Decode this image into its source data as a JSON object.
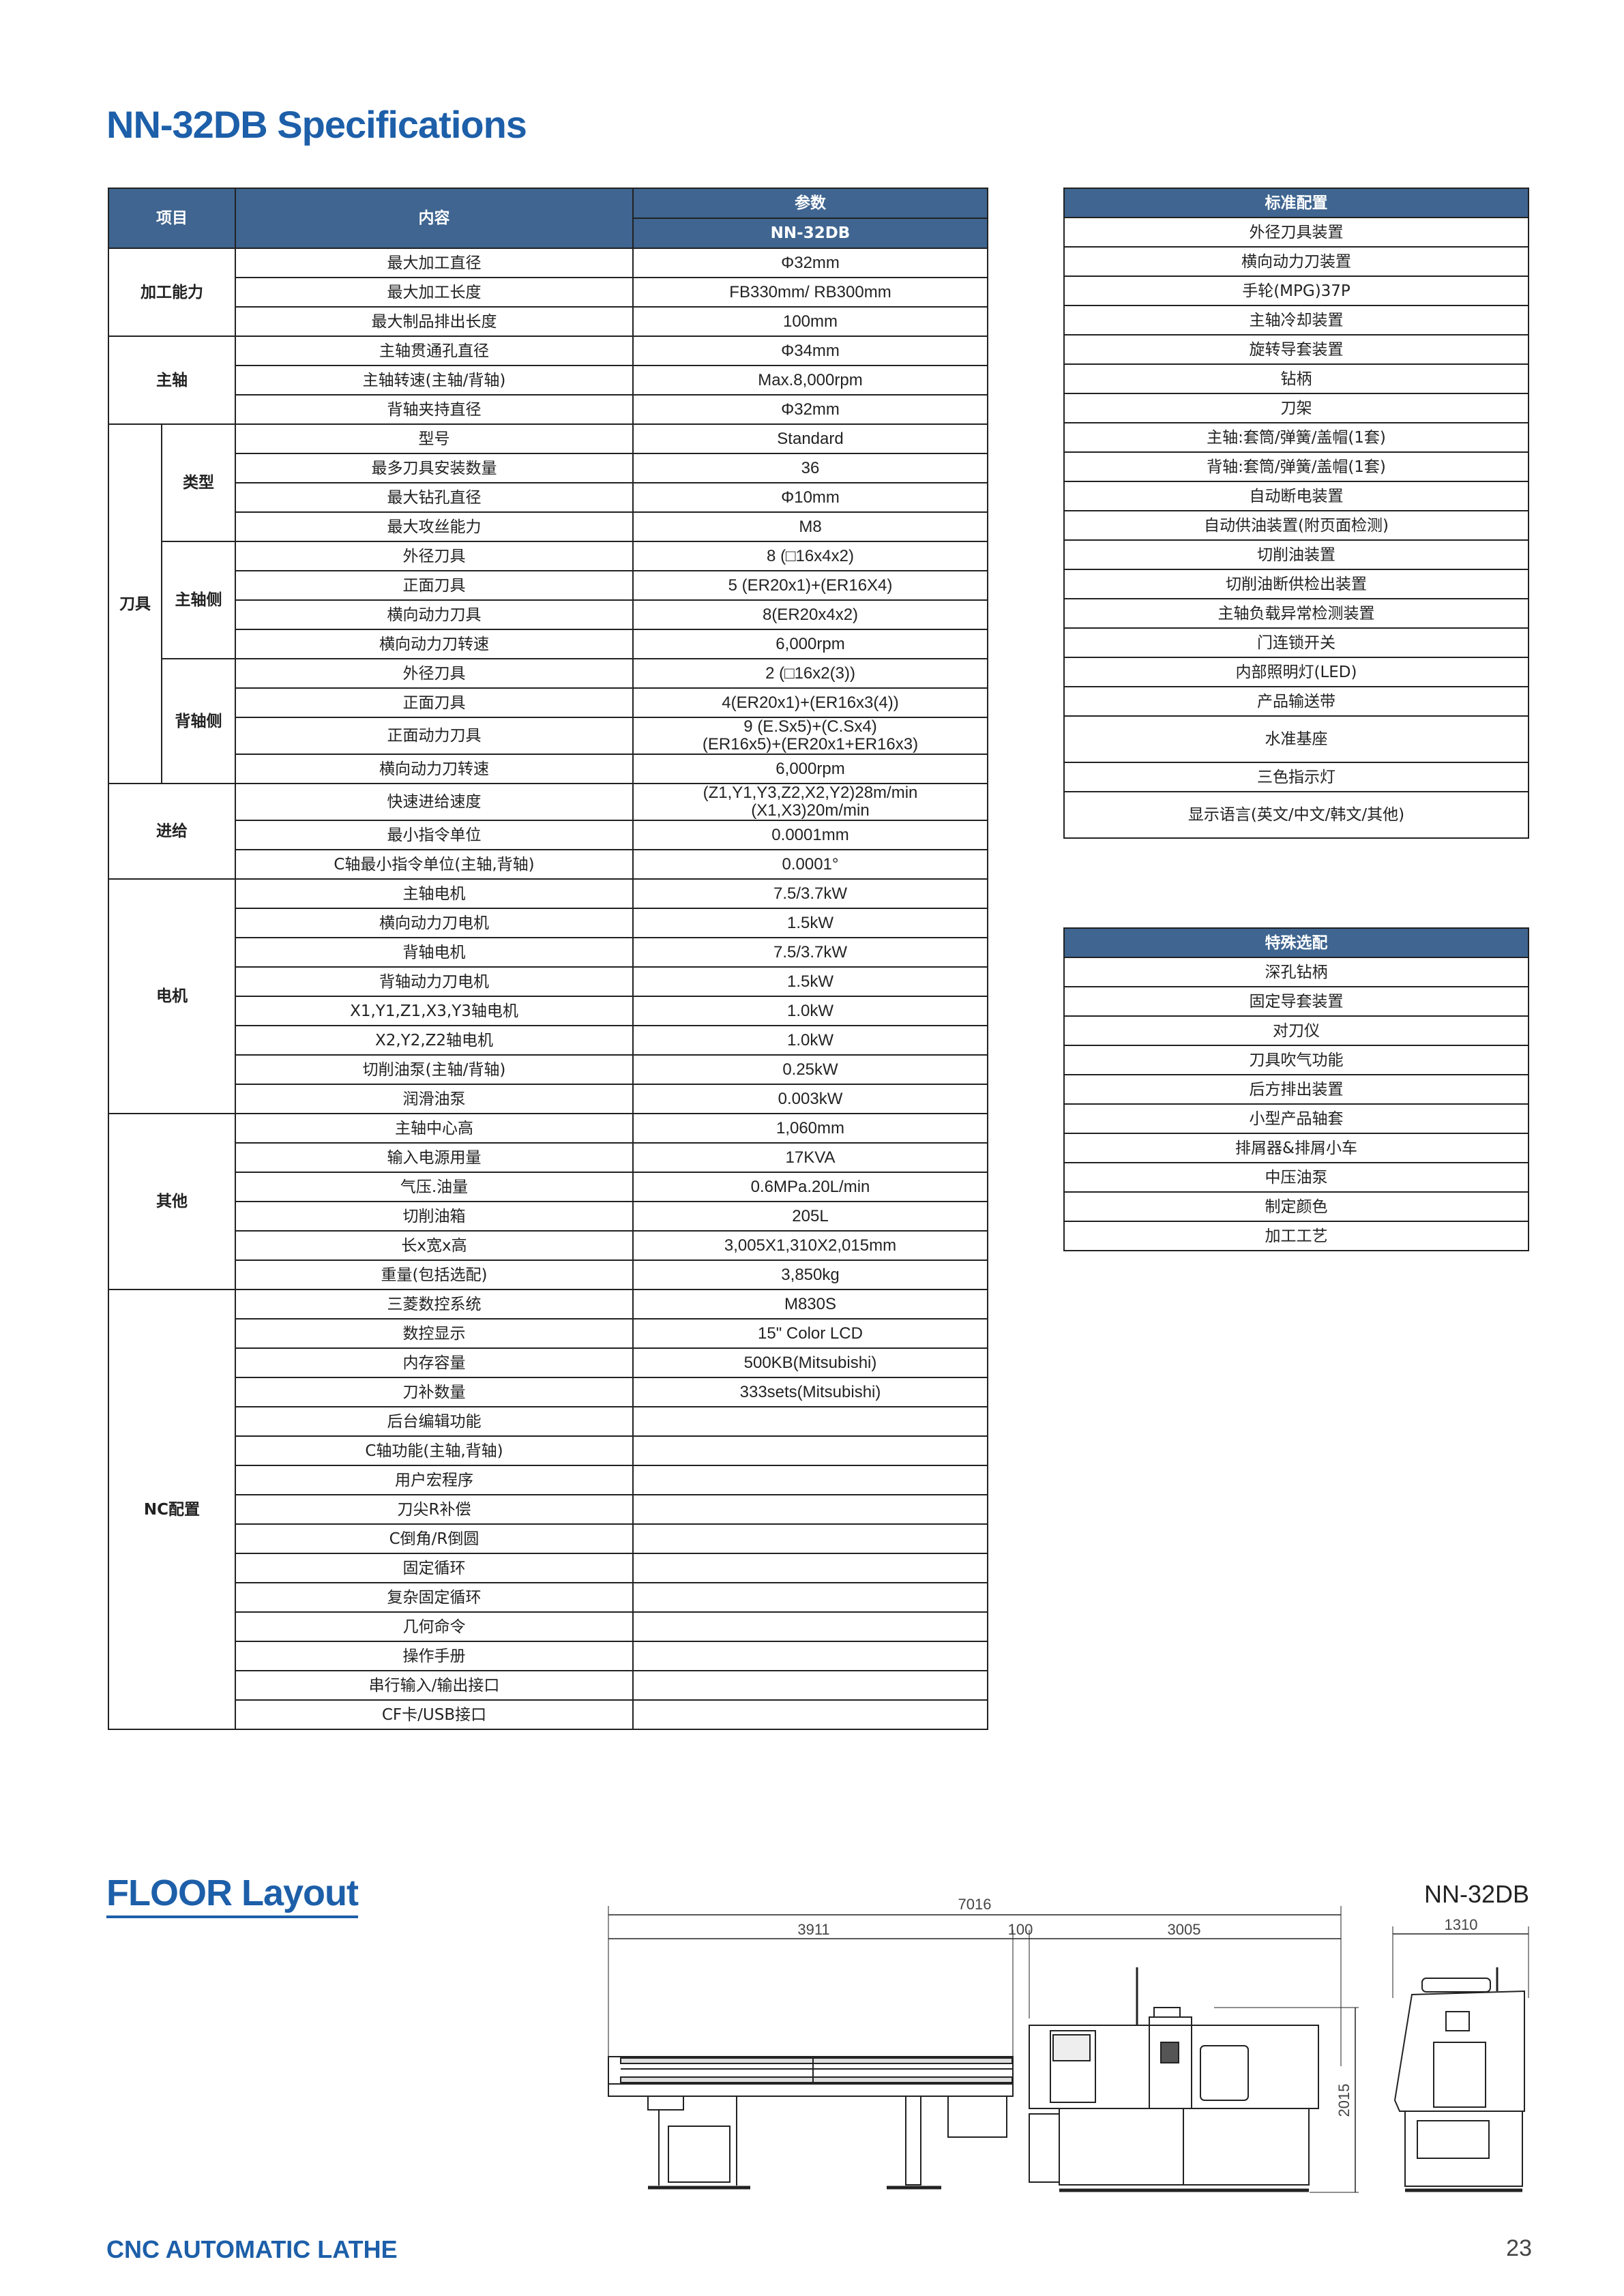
{
  "page_title": "NN-32DB Specifications",
  "accent_color": "#1d5fa9",
  "header_color": "#3f6590",
  "spec_table": {
    "headers": {
      "item": "项目",
      "content": "内容",
      "params": "参数",
      "model": "NN-32DB"
    },
    "groups": [
      {
        "label": "加工能力",
        "rows": [
          {
            "name": "最大加工直径",
            "value": "Φ32mm"
          },
          {
            "name": "最大加工长度",
            "value": "FB330mm/ RB300mm"
          },
          {
            "name": "最大制品排出长度",
            "value": "100mm"
          }
        ]
      },
      {
        "label": "主轴",
        "rows": [
          {
            "name": "主轴贯通孔直径",
            "value": "Φ34mm"
          },
          {
            "name": "主轴转速(主轴/背轴)",
            "value": "Max.8,000rpm"
          },
          {
            "name": "背轴夹持直径",
            "value": "Φ32mm"
          }
        ]
      },
      {
        "label": "刀具",
        "subgroups": [
          {
            "label": "类型",
            "rows": [
              {
                "name": "型号",
                "value": "Standard"
              },
              {
                "name": "最多刀具安装数量",
                "value": "36"
              },
              {
                "name": "最大钻孔直径",
                "value": "Φ10mm"
              },
              {
                "name": "最大攻丝能力",
                "value": "M8"
              }
            ]
          },
          {
            "label": "主轴侧",
            "rows": [
              {
                "name": "外径刀具",
                "value": "8 (□16x4x2)"
              },
              {
                "name": "正面刀具",
                "value": "5 (ER20x1)+(ER16X4)"
              },
              {
                "name": "横向动力刀具",
                "value": "8(ER20x4x2)"
              },
              {
                "name": "横向动力刀转速",
                "value": "6,000rpm"
              }
            ]
          },
          {
            "label": "背轴侧",
            "rows": [
              {
                "name": "外径刀具",
                "value": "2 (□16x2(3))"
              },
              {
                "name": "正面刀具",
                "value": "4(ER20x1)+(ER16x3(4))"
              },
              {
                "name": "正面动力刀具",
                "value": "9 (E.Sx5)+(C.Sx4)\n(ER16x5)+(ER20x1+ER16x3)"
              },
              {
                "name": "横向动力刀转速",
                "value": "6,000rpm"
              }
            ]
          }
        ]
      },
      {
        "label": "进给",
        "rows": [
          {
            "name": "快速进给速度",
            "value": "(Z1,Y1,Y3,Z2,X2,Y2)28m/min\n(X1,X3)20m/min"
          },
          {
            "name": "最小指令单位",
            "value": "0.0001mm"
          },
          {
            "name": "C轴最小指令单位(主轴,背轴)",
            "value": "0.0001°"
          }
        ]
      },
      {
        "label": "电机",
        "rows": [
          {
            "name": "主轴电机",
            "value": "7.5/3.7kW"
          },
          {
            "name": "横向动力刀电机",
            "value": "1.5kW"
          },
          {
            "name": "背轴电机",
            "value": "7.5/3.7kW"
          },
          {
            "name": "背轴动力刀电机",
            "value": "1.5kW"
          },
          {
            "name": "X1,Y1,Z1,X3,Y3轴电机",
            "value": "1.0kW"
          },
          {
            "name": "X2,Y2,Z2轴电机",
            "value": "1.0kW"
          },
          {
            "name": "切削油泵(主轴/背轴)",
            "value": "0.25kW"
          },
          {
            "name": "润滑油泵",
            "value": "0.003kW"
          }
        ]
      },
      {
        "label": "其他",
        "rows": [
          {
            "name": "主轴中心高",
            "value": "1,060mm"
          },
          {
            "name": "输入电源用量",
            "value": "17KVA"
          },
          {
            "name": "气压.油量",
            "value": "0.6MPa.20L/min"
          },
          {
            "name": "切削油箱",
            "value": "205L"
          },
          {
            "name": "长x宽x高",
            "value": "3,005X1,310X2,015mm"
          },
          {
            "name": "重量(包括选配)",
            "value": "3,850kg"
          }
        ]
      },
      {
        "label": "NC配置",
        "rows": [
          {
            "name": "三菱数控系统",
            "value": "M830S"
          },
          {
            "name": "数控显示",
            "value": "15\" Color LCD"
          },
          {
            "name": "内存容量",
            "value": "500KB(Mitsubishi)"
          },
          {
            "name": "刀补数量",
            "value": "333sets(Mitsubishi)"
          },
          {
            "name": "后台编辑功能",
            "value": ""
          },
          {
            "name": "C轴功能(主轴,背轴)",
            "value": ""
          },
          {
            "name": "用户宏程序",
            "value": ""
          },
          {
            "name": "刀尖R补偿",
            "value": ""
          },
          {
            "name": "C倒角/R倒圆",
            "value": ""
          },
          {
            "name": "固定循环",
            "value": ""
          },
          {
            "name": "复杂固定循环",
            "value": ""
          },
          {
            "name": "几何命令",
            "value": ""
          },
          {
            "name": "操作手册",
            "value": ""
          },
          {
            "name": "串行输入/输出接口",
            "value": ""
          },
          {
            "name": "CF卡/USB接口",
            "value": ""
          }
        ]
      }
    ]
  },
  "standard_config": {
    "header": "标准配置",
    "items": [
      "外径刀具装置",
      "横向动力刀装置",
      "手轮(MPG)37P",
      "主轴冷却装置",
      "旋转导套装置",
      "钻柄",
      "刀架",
      "主轴:套筒/弹簧/盖帽(1套)",
      "背轴:套筒/弹簧/盖帽(1套)",
      "自动断电装置",
      "自动供油装置(附页面检测)",
      "切削油装置",
      "切削油断供检出装置",
      "主轴负载异常检测装置",
      "门连锁开关",
      "内部照明灯(LED)",
      "产品输送带",
      "水准基座",
      "三色指示灯",
      "显示语言(英文/中文/韩文/其他)"
    ]
  },
  "special_options": {
    "header": "特殊选配",
    "items": [
      "深孔钻柄",
      "固定导套装置",
      "对刀仪",
      "刀具吹气功能",
      "后方排出装置",
      "小型产品轴套",
      "排屑器&排屑小车",
      "中压油泵",
      "制定颜色",
      "加工工艺"
    ]
  },
  "floor_layout": {
    "title": "FLOOR Layout",
    "model": "NN-32DB",
    "dimensions": {
      "overall_length": "7016",
      "bar_feeder": "3911",
      "gap": "100",
      "machine_length": "3005",
      "height": "2015",
      "width": "1310"
    }
  },
  "footer": {
    "left": "CNC AUTOMATIC LATHE",
    "page_number": "23"
  }
}
